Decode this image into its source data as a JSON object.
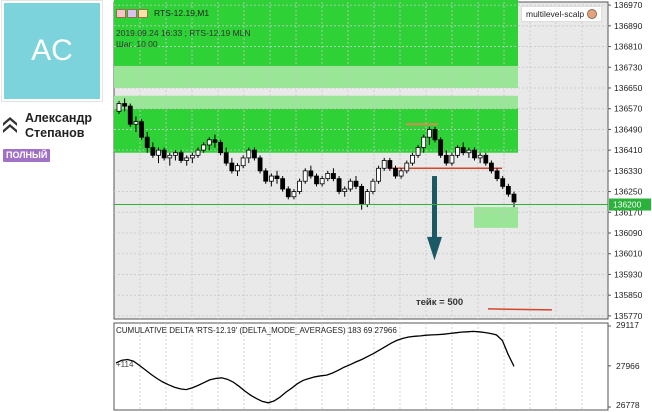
{
  "profile": {
    "avatar_initials": "AC",
    "name_line1": "Александр",
    "name_line2": "Степанов",
    "badge": "ПОЛНЫЙ",
    "avatar_color": "#7cd3dc",
    "badge_color": "#a071c5",
    "rank_icon": "double-chevron-up-icon"
  },
  "chart": {
    "title": "RTS-12.19,M1",
    "info_line1": "2019.09.24 16:33 ; RTS-12.19 MLN",
    "info_line2": "Шаг: 10.00",
    "indicator_label": "multilevel-scalp",
    "current_price": "136200",
    "take_label": "тейк = 500",
    "price_labels": [
      "136970",
      "136890",
      "136810",
      "136730",
      "136650",
      "136570",
      "136490",
      "136410",
      "136330",
      "136250",
      "136170",
      "136090",
      "136010",
      "135930",
      "135850",
      "135770"
    ],
    "colors": {
      "zone_bright": "#2ed136",
      "zone_light": "#98e696",
      "grid": "#c8c8c8",
      "arrow": "#1b5a64",
      "level_line": "#d2462d"
    }
  },
  "subwindow": {
    "title": "CUMULATIVE DELTA 'RTS-12.19' (DELTA_MODE_AVERAGES) 183 69 27966",
    "scale_labels": [
      "29117",
      "27966",
      "26778"
    ],
    "zero_marker": "+114"
  },
  "chart_data": [
    {
      "type": "candlestick",
      "title": "RTS-12.19,M1",
      "ylim": [
        135770,
        137000
      ],
      "y_ticks": [
        136970,
        136890,
        136810,
        136730,
        136650,
        136570,
        136490,
        136410,
        136330,
        136250,
        136170,
        136090,
        136010,
        135930,
        135850,
        135770
      ],
      "current_price": 136200,
      "take_profit": 500,
      "zones": [
        {
          "from": 136735,
          "to": 137000,
          "kind": "bright"
        },
        {
          "from": 136650,
          "to": 136735,
          "kind": "light"
        },
        {
          "from": 136570,
          "to": 136620,
          "kind": "light"
        },
        {
          "from": 136400,
          "to": 136570,
          "kind": "bright"
        },
        {
          "from": 136110,
          "to": 136190,
          "kind": "light"
        }
      ],
      "candles": [
        [
          136560,
          136600,
          136550,
          136590
        ],
        [
          136590,
          136610,
          136560,
          136580
        ],
        [
          136580,
          136590,
          136500,
          136510
        ],
        [
          136510,
          136540,
          136480,
          136520
        ],
        [
          136520,
          136530,
          136450,
          136460
        ],
        [
          136460,
          136480,
          136400,
          136420
        ],
        [
          136420,
          136440,
          136380,
          136390
        ],
        [
          136390,
          136420,
          136360,
          136410
        ],
        [
          136410,
          136420,
          136370,
          136380
        ],
        [
          136380,
          136400,
          136350,
          136390
        ],
        [
          136390,
          136410,
          136370,
          136400
        ],
        [
          136400,
          136410,
          136360,
          136370
        ],
        [
          136370,
          136390,
          136350,
          136380
        ],
        [
          136380,
          136400,
          136360,
          136390
        ],
        [
          136390,
          136420,
          136380,
          136410
        ],
        [
          136410,
          136440,
          136400,
          136430
        ],
        [
          136430,
          136460,
          136410,
          136450
        ],
        [
          136450,
          136470,
          136420,
          136440
        ],
        [
          136440,
          136450,
          136390,
          136400
        ],
        [
          136400,
          136420,
          136350,
          136360
        ],
        [
          136360,
          136380,
          136320,
          136330
        ],
        [
          136330,
          136360,
          136310,
          136350
        ],
        [
          136350,
          136390,
          136340,
          136380
        ],
        [
          136380,
          136420,
          136360,
          136410
        ],
        [
          136410,
          136420,
          136370,
          136380
        ],
        [
          136380,
          136390,
          136320,
          136330
        ],
        [
          136330,
          136340,
          136280,
          136290
        ],
        [
          136290,
          136320,
          136270,
          136310
        ],
        [
          136310,
          136330,
          136280,
          136300
        ],
        [
          136300,
          136310,
          136250,
          136260
        ],
        [
          136260,
          136270,
          136220,
          136230
        ],
        [
          136230,
          136260,
          136220,
          136250
        ],
        [
          136250,
          136300,
          136240,
          136290
        ],
        [
          136290,
          136340,
          136280,
          136330
        ],
        [
          136330,
          136350,
          136300,
          136310
        ],
        [
          136310,
          136320,
          136270,
          136280
        ],
        [
          136280,
          136310,
          136270,
          136300
        ],
        [
          136300,
          136330,
          136290,
          136320
        ],
        [
          136320,
          136340,
          136290,
          136300
        ],
        [
          136300,
          136310,
          136240,
          136250
        ],
        [
          136250,
          136270,
          136230,
          136260
        ],
        [
          136260,
          136300,
          136250,
          136290
        ],
        [
          136290,
          136310,
          136260,
          136270
        ],
        [
          136270,
          136280,
          136180,
          136200
        ],
        [
          136200,
          136260,
          136190,
          136250
        ],
        [
          136250,
          136300,
          136240,
          136290
        ],
        [
          136290,
          136350,
          136280,
          136340
        ],
        [
          136340,
          136380,
          136330,
          136370
        ],
        [
          136370,
          136380,
          136330,
          136340
        ],
        [
          136340,
          136350,
          136300,
          136310
        ],
        [
          136310,
          136340,
          136300,
          136330
        ],
        [
          136330,
          136370,
          136320,
          136360
        ],
        [
          136360,
          136400,
          136350,
          136390
        ],
        [
          136390,
          136430,
          136380,
          136420
        ],
        [
          136420,
          136470,
          136400,
          136460
        ],
        [
          136460,
          136500,
          136430,
          136490
        ],
        [
          136490,
          136500,
          136440,
          136450
        ],
        [
          136450,
          136460,
          136380,
          136390
        ],
        [
          136390,
          136410,
          136350,
          136360
        ],
        [
          136360,
          136400,
          136350,
          136390
        ],
        [
          136390,
          136430,
          136380,
          136420
        ],
        [
          136420,
          136440,
          136390,
          136400
        ],
        [
          136400,
          136420,
          136380,
          136410
        ],
        [
          136410,
          136420,
          136370,
          136380
        ],
        [
          136380,
          136400,
          136360,
          136390
        ],
        [
          136390,
          136400,
          136350,
          136360
        ],
        [
          136360,
          136370,
          136320,
          136330
        ],
        [
          136330,
          136340,
          136290,
          136300
        ],
        [
          136300,
          136310,
          136260,
          136270
        ],
        [
          136270,
          136280,
          136230,
          136240
        ],
        [
          136240,
          136250,
          136190,
          136210
        ]
      ]
    },
    {
      "type": "line",
      "title": "CUMULATIVE DELTA 'RTS-12.19' (DELTA_MODE_AVERAGES) 183 69 27966",
      "ylim": [
        26778,
        29117
      ],
      "y_ticks": [
        29117,
        27966,
        26778
      ],
      "values": [
        28050,
        28130,
        28150,
        28100,
        27980,
        27850,
        27720,
        27600,
        27500,
        27420,
        27350,
        27300,
        27280,
        27330,
        27400,
        27480,
        27560,
        27600,
        27620,
        27580,
        27500,
        27380,
        27240,
        27120,
        27020,
        26940,
        26900,
        26950,
        27060,
        27200,
        27320,
        27450,
        27550,
        27600,
        27650,
        27680,
        27700,
        27760,
        27840,
        27930,
        28000,
        28080,
        28150,
        28240,
        28320,
        28420,
        28520,
        28620,
        28700,
        28760,
        28800,
        28820,
        28830,
        28850,
        28860,
        28870,
        28880,
        28900,
        28920,
        28940,
        28950,
        28960,
        28950,
        28930,
        28900,
        28860,
        28700,
        28300,
        27950
      ]
    }
  ]
}
